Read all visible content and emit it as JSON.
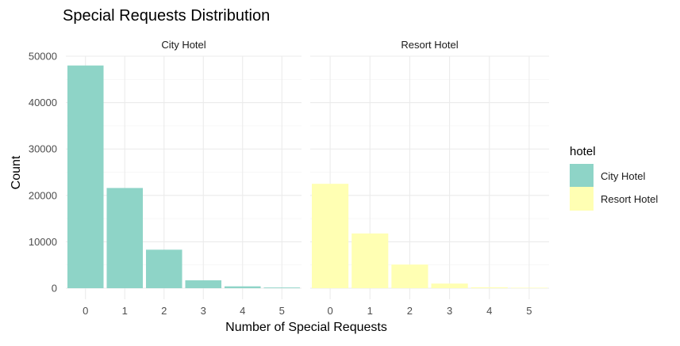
{
  "chart_data": {
    "type": "bar",
    "title": "Special Requests Distribution",
    "xlabel": "Number of Special Requests",
    "ylabel": "Count",
    "categories": [
      "0",
      "1",
      "2",
      "3",
      "4",
      "5"
    ],
    "ylim": [
      0,
      50000
    ],
    "yticks": [
      0,
      10000,
      20000,
      30000,
      40000,
      50000
    ],
    "ytick_labels": [
      "0",
      "10000",
      "20000",
      "30000",
      "40000",
      "50000"
    ],
    "grid": true,
    "facets": [
      "City Hotel",
      "Resort Hotel"
    ],
    "series": [
      {
        "name": "City Hotel",
        "facet": "City Hotel",
        "color": "#8ED4C7",
        "values": [
          48000,
          21600,
          8300,
          1700,
          400,
          150
        ]
      },
      {
        "name": "Resort Hotel",
        "facet": "Resort Hotel",
        "color": "#FFFFB3",
        "values": [
          22500,
          11800,
          5100,
          1000,
          200,
          100
        ]
      }
    ],
    "legend": {
      "title": "hotel",
      "position": "right",
      "entries": [
        {
          "label": "City Hotel",
          "color": "#8ED4C7"
        },
        {
          "label": "Resort Hotel",
          "color": "#FFFFB3"
        }
      ]
    }
  }
}
